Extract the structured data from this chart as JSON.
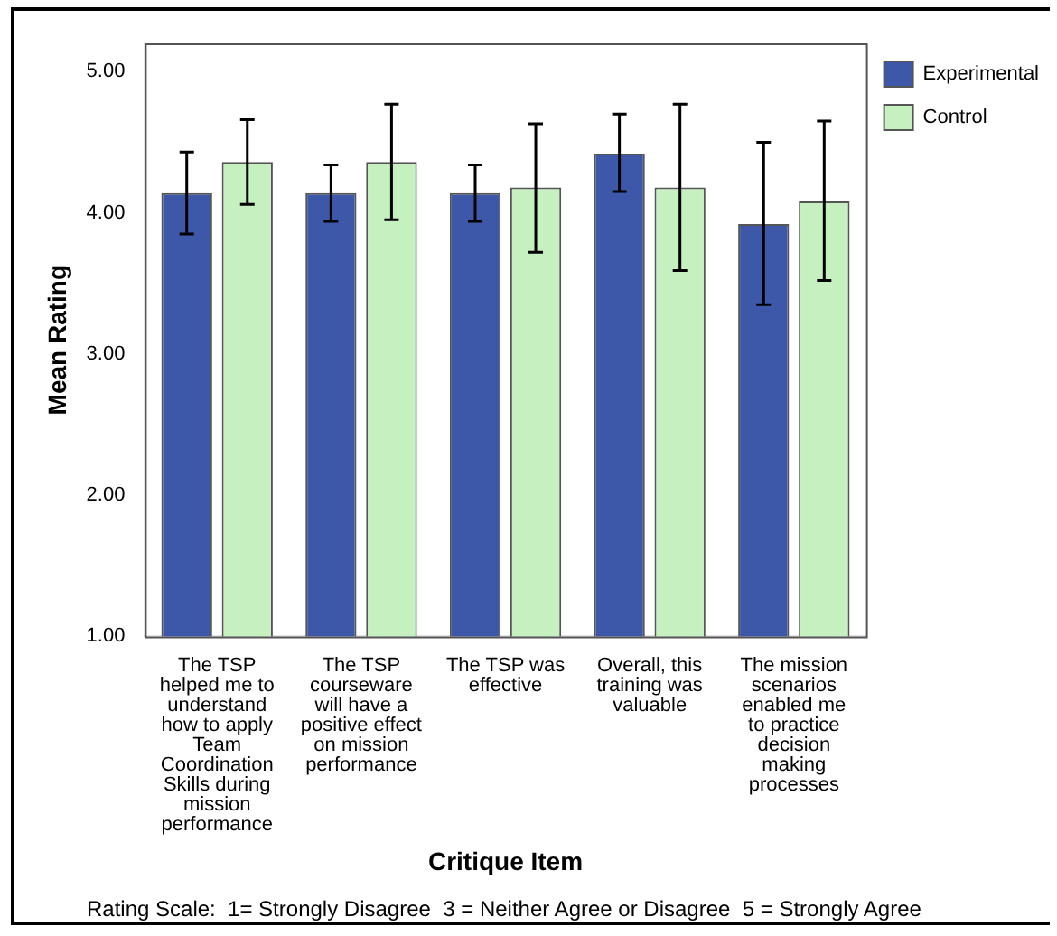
{
  "chart_data": {
    "type": "bar",
    "xlabel": "Critique Item",
    "ylabel": "Mean Rating",
    "categories": [
      "The TSP helped me to understand how to apply Team Coordination Skills during mission performance",
      "The TSP courseware will have a positive effect on mission performance",
      "The TSP was effective",
      "Overall, this training was valuable",
      "The mission scenarios enabled me to practice decision making processes"
    ],
    "series": [
      {
        "name": "Experimental",
        "color": "#3d58a8",
        "values": [
          4.14,
          4.14,
          4.14,
          4.42,
          3.92
        ],
        "errors": [
          [
            3.85,
            4.43
          ],
          [
            3.94,
            4.34
          ],
          [
            3.94,
            4.34
          ],
          [
            4.15,
            4.7
          ],
          [
            3.35,
            4.5
          ]
        ]
      },
      {
        "name": "Control",
        "color": "#c6f0c0",
        "values": [
          4.36,
          4.36,
          4.18,
          4.18,
          4.08
        ],
        "errors": [
          [
            4.06,
            4.66
          ],
          [
            3.95,
            4.77
          ],
          [
            3.72,
            4.63
          ],
          [
            3.59,
            4.77
          ],
          [
            3.52,
            4.65
          ]
        ]
      }
    ],
    "ylim": [
      1,
      5.2
    ],
    "yticks": [
      {
        "value": 1,
        "label": "1.00"
      },
      {
        "value": 2,
        "label": "2.00"
      },
      {
        "value": 3,
        "label": "3.00"
      },
      {
        "value": 4,
        "label": "4.00"
      },
      {
        "value": 5,
        "label": "5.00"
      }
    ],
    "grid": false,
    "legend": "top right",
    "annotations": [
      "Rating Scale:  1= Strongly Disagree  3 = Neither Agree or Disagree  5 = Strongly Agree"
    ]
  }
}
